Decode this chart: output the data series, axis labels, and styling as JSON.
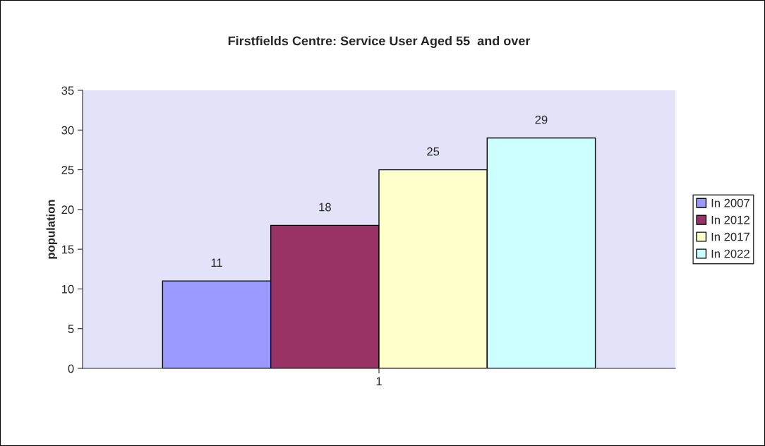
{
  "chart_data": {
    "type": "bar",
    "title": "Firstfields Centre: Service User Aged 55  and over",
    "ylabel": "population",
    "categories": [
      "1"
    ],
    "series": [
      {
        "name": "In 2007",
        "color": "#9999ff",
        "values": [
          11
        ]
      },
      {
        "name": "In 2012",
        "color": "#993366",
        "values": [
          18
        ]
      },
      {
        "name": "In 2017",
        "color": "#ffffcc",
        "values": [
          25
        ]
      },
      {
        "name": "In 2022",
        "color": "#ccffff",
        "values": [
          29
        ]
      }
    ],
    "ylim": [
      0,
      35
    ],
    "yticks": [
      0,
      5,
      10,
      15,
      20,
      25,
      30,
      35
    ],
    "grid": false,
    "legend": "right",
    "data_labels": true
  }
}
